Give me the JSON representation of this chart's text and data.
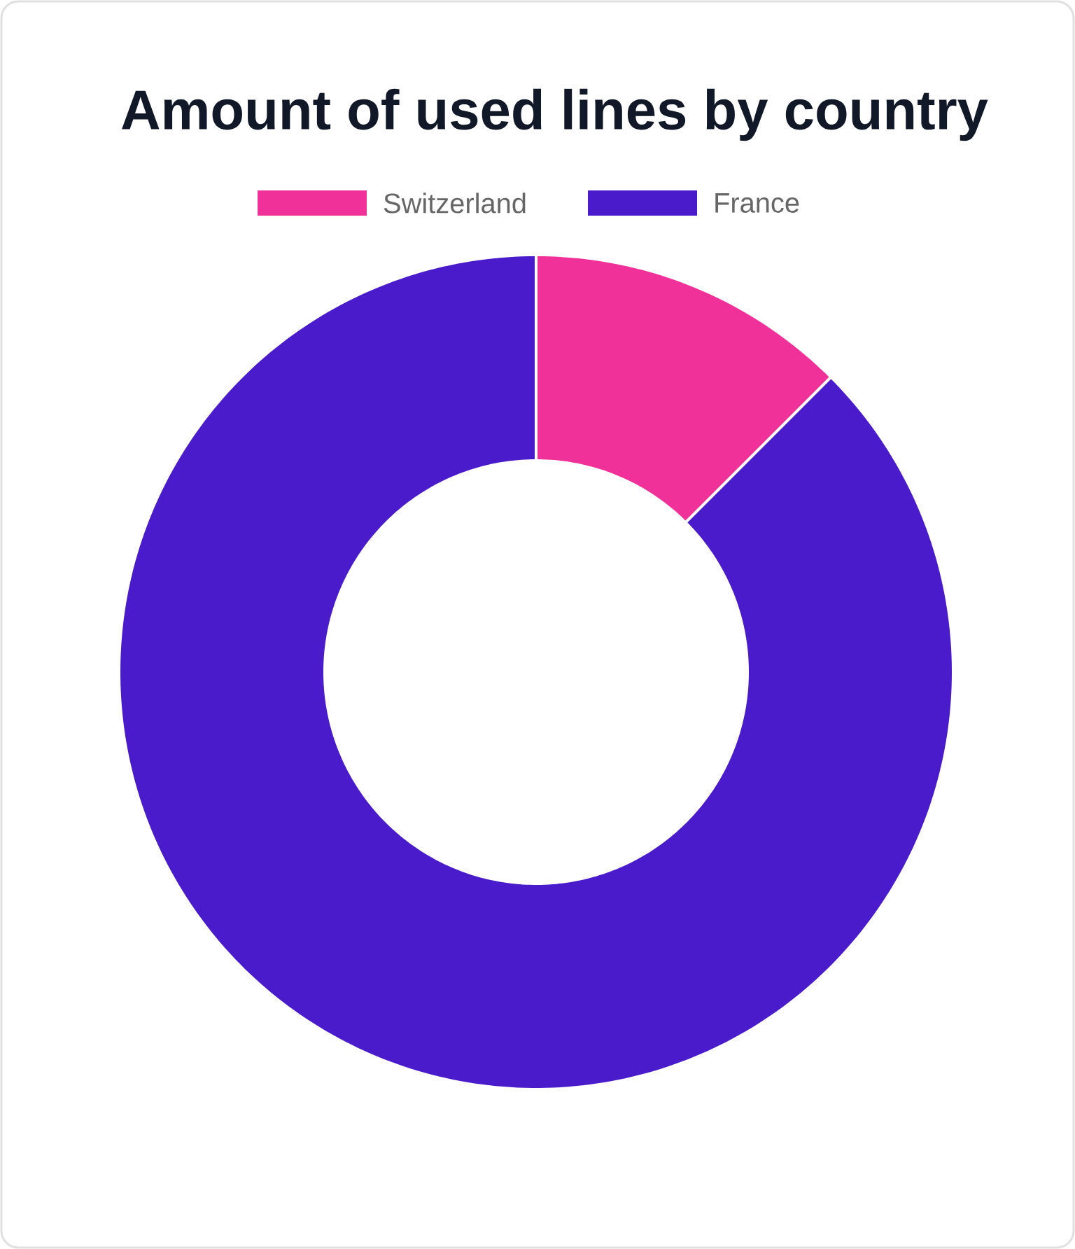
{
  "chart_data": {
    "type": "donut",
    "title": "Amount of used lines by country",
    "categories": [
      "Switzerland",
      "France"
    ],
    "values": [
      12.5,
      87.5
    ],
    "colors": [
      "#f03199",
      "#4a1bcb"
    ],
    "legend": "top"
  }
}
